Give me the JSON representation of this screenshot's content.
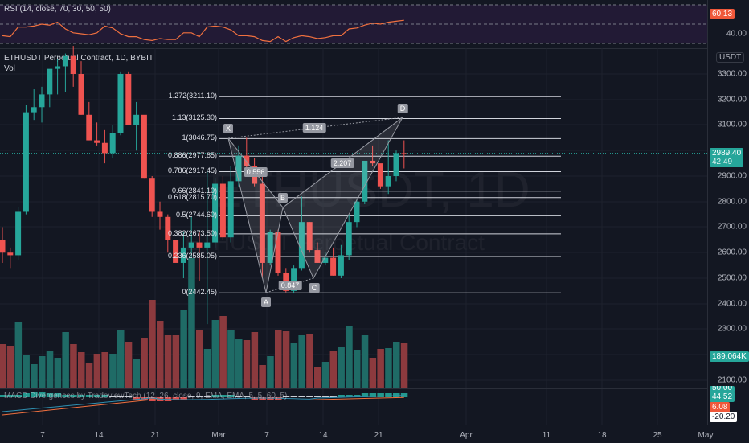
{
  "rsi": {
    "legend": "RSI (14, close, 70, 30, 50, 50)",
    "value_tag": "60.13",
    "axis_label": "40.00",
    "color": "#f0703f"
  },
  "main": {
    "legend_title": "ETHUSDT Perpetual Contract, 1D, BYBIT",
    "legend_vol": "Vol",
    "watermark_big": "ETHUSDT, 1D",
    "watermark_small": "ETHUSDT Perpetual Contract",
    "currency": "USDT",
    "price_ticks": [
      "3300.00",
      "3200.00",
      "3100.00",
      "2900.00",
      "2800.00",
      "2700.00",
      "2600.00",
      "2500.00",
      "2400.00",
      "2300.00",
      "2100.00"
    ],
    "last_price": "2989.40",
    "countdown": "42:49",
    "volume_tag": "189.064K",
    "up_color": "#26a69a",
    "down_color": "#ef5350"
  },
  "harmonic": {
    "points": [
      "X",
      "A",
      "B",
      "C",
      "D"
    ],
    "ratios": [
      "0.556",
      "0.847",
      "2.207",
      "1.124"
    ]
  },
  "fib_levels": [
    {
      "label": "1.272(3211.10)",
      "price": 3211.1
    },
    {
      "label": "1.13(3125.30)",
      "price": 3125.3
    },
    {
      "label": "1(3046.75)",
      "price": 3046.75
    },
    {
      "label": "0.886(2977.85)",
      "price": 2977.85
    },
    {
      "label": "0.786(2917.45)",
      "price": 2917.45
    },
    {
      "label": "0.66(2841.10)",
      "price": 2841.1
    },
    {
      "label": "0.618(2815.70)",
      "price": 2815.7
    },
    {
      "label": "0.5(2744.60)",
      "price": 2744.6
    },
    {
      "label": "0.382(2673.50)",
      "price": 2673.5
    },
    {
      "label": "0.236(2585.05)",
      "price": 2585.05
    },
    {
      "label": "0(2442.45)",
      "price": 2442.45
    }
  ],
  "macd": {
    "legend": "MACD Divergences by TradeviewTech (12, 26, close, 9, EMA, EMA, 5, 5, 60, 5)",
    "tags": [
      "50.00",
      "44.52",
      "6.08",
      "-20.20",
      "-20.20"
    ]
  },
  "x_axis": {
    "labels": [
      "7",
      "14",
      "21",
      "Mar",
      "7",
      "14",
      "21",
      "Apr",
      "11",
      "18",
      "25",
      "May"
    ]
  },
  "chart_data": {
    "type": "candlestick",
    "title": "ETHUSDT Perpetual Contract, 1D, BYBIT",
    "ylabel": "USDT",
    "ylim": [
      2050,
      3420
    ],
    "x_start": "Feb 1",
    "candles": [
      [
        2650,
        2700,
        2560,
        2600
      ],
      [
        2600,
        2620,
        2540,
        2590
      ],
      [
        2590,
        2780,
        2570,
        2760
      ],
      [
        2760,
        3180,
        2750,
        3150
      ],
      [
        3150,
        3240,
        3120,
        3170
      ],
      [
        3170,
        3250,
        3110,
        3220
      ],
      [
        3220,
        3300,
        3170,
        3320
      ],
      [
        3320,
        3360,
        3220,
        3330
      ],
      [
        3330,
        3380,
        3230,
        3370
      ],
      [
        3370,
        3410,
        3250,
        3300
      ],
      [
        3300,
        3350,
        3140,
        3140
      ],
      [
        3140,
        3190,
        3040,
        3040
      ],
      [
        3040,
        3110,
        3020,
        3030
      ],
      [
        3030,
        3080,
        2950,
        2990
      ],
      [
        2990,
        3100,
        2970,
        3070
      ],
      [
        3070,
        3310,
        3060,
        3300
      ],
      [
        3300,
        3310,
        3100,
        3100
      ],
      [
        3100,
        3190,
        3000,
        3140
      ],
      [
        3140,
        3130,
        2890,
        2890
      ],
      [
        2890,
        2900,
        2740,
        2760
      ],
      [
        2760,
        2800,
        2690,
        2740
      ],
      [
        2740,
        2750,
        2600,
        2650
      ],
      [
        2650,
        2580,
        2570,
        2560
      ],
      [
        2560,
        2680,
        2500,
        2620
      ],
      [
        2620,
        2740,
        2580,
        2640
      ],
      [
        2640,
        2680,
        2490,
        2620
      ],
      [
        2620,
        2920,
        2320,
        2640
      ],
      [
        2640,
        2890,
        2620,
        2870
      ],
      [
        2870,
        2900,
        2650,
        2660
      ],
      [
        2660,
        2940,
        2640,
        2880
      ],
      [
        2880,
        3020,
        2860,
        2980
      ],
      [
        2980,
        3050,
        2900,
        2940
      ],
      [
        2940,
        2970,
        2860,
        2870
      ],
      [
        2870,
        2900,
        2500,
        2560
      ],
      [
        2560,
        2690,
        2550,
        2680
      ],
      [
        2680,
        2690,
        2510,
        2520
      ],
      [
        2520,
        2540,
        2445,
        2450
      ],
      [
        2450,
        2550,
        2440,
        2540
      ],
      [
        2540,
        2820,
        2530,
        2720
      ],
      [
        2720,
        2720,
        2600,
        2610
      ],
      [
        2610,
        2640,
        2560,
        2560
      ],
      [
        2560,
        2600,
        2550,
        2580
      ],
      [
        2580,
        2620,
        2510,
        2510
      ],
      [
        2510,
        2630,
        2500,
        2590
      ],
      [
        2590,
        2750,
        2570,
        2720
      ],
      [
        2720,
        2810,
        2700,
        2800
      ],
      [
        2800,
        2950,
        2790,
        2960
      ],
      [
        2960,
        3020,
        2940,
        2950
      ],
      [
        2950,
        2940,
        2850,
        2860
      ],
      [
        2860,
        3040,
        2830,
        2900
      ],
      [
        2900,
        3000,
        2880,
        2990
      ],
      [
        2990,
        3040,
        2930,
        2989.4
      ]
    ],
    "volume_color_up": "#1f6b66",
    "volume_color_down": "#8c3a3e"
  }
}
